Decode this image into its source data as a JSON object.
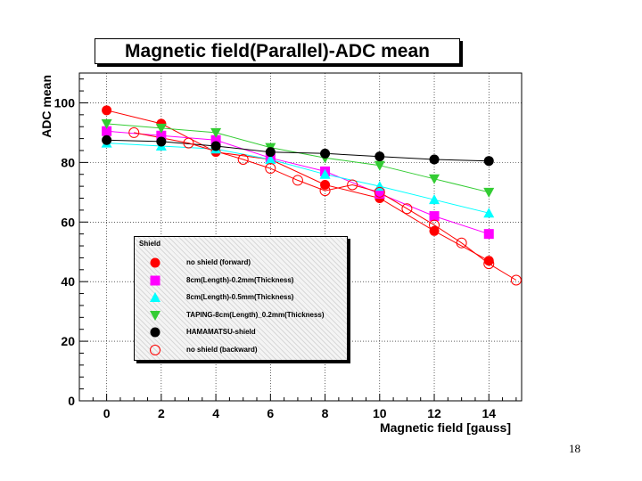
{
  "page_number": "18",
  "colors": {
    "no_shield_forward": "#ff0000",
    "thick_02": "#ff00ff",
    "thick_05": "#00ffff",
    "taping": "#33cc33",
    "hamamatsu": "#000000",
    "no_shield_backward": "#ff0000"
  },
  "chart_data": {
    "type": "scatter",
    "title": "Magnetic field(Parallel)-ADC mean",
    "xlabel": "Magnetic field [gauss]",
    "ylabel": "ADC mean",
    "xlim": [
      -1,
      15.2
    ],
    "ylim": [
      0,
      110
    ],
    "x_ticks": [
      0,
      2,
      4,
      6,
      8,
      10,
      12,
      14
    ],
    "x_tick_labels": [
      "0",
      "2",
      "4",
      "6",
      "8",
      "10",
      "12",
      "14"
    ],
    "y_ticks": [
      0,
      20,
      40,
      60,
      80,
      100
    ],
    "y_tick_labels": [
      "0",
      "20",
      "40",
      "60",
      "80",
      "100"
    ],
    "legend_title": "Shield",
    "legend_position": "lower-left",
    "series": [
      {
        "name": "no shield (forward)",
        "marker": "filled-circle",
        "color": "#ff0000",
        "x": [
          0,
          2,
          4,
          6,
          8,
          10,
          12,
          14
        ],
        "y": [
          97.5,
          93.0,
          83.5,
          81.0,
          72.5,
          68.0,
          57.0,
          47.0
        ]
      },
      {
        "name": "8cm(Length)-0.2mm(Thickness)",
        "marker": "square",
        "color": "#ff00ff",
        "x": [
          0,
          2,
          4,
          6,
          8,
          10,
          12,
          14
        ],
        "y": [
          90.5,
          89.0,
          87.5,
          81.5,
          77.0,
          69.5,
          62.0,
          56.0
        ]
      },
      {
        "name": "8cm(Length)-0.5mm(Thickness)",
        "marker": "triangle-up",
        "color": "#00ffff",
        "x": [
          0,
          2,
          4,
          6,
          8,
          10,
          12,
          14
        ],
        "y": [
          86.5,
          85.5,
          84.5,
          81.0,
          76.0,
          72.0,
          67.5,
          63.0
        ]
      },
      {
        "name": "TAPING-8cm(Length)_0.2mm(Thickness)",
        "marker": "triangle-down",
        "color": "#33cc33",
        "x": [
          0,
          2,
          4,
          6,
          8,
          10,
          12,
          14
        ],
        "y": [
          93.0,
          91.5,
          90.0,
          85.0,
          81.5,
          79.0,
          74.5,
          70.0
        ]
      },
      {
        "name": "HAMAMATSU-shield",
        "marker": "filled-circle",
        "color": "#000000",
        "x": [
          0,
          2,
          4,
          6,
          8,
          10,
          12,
          14
        ],
        "y": [
          87.5,
          87.0,
          85.5,
          83.5,
          83.0,
          82.0,
          81.0,
          80.5
        ]
      },
      {
        "name": "no shield (backward)",
        "marker": "open-circle",
        "color": "#ff0000",
        "x": [
          1,
          3,
          5,
          6,
          7,
          8,
          9,
          10,
          11,
          12,
          13,
          14,
          15
        ],
        "y": [
          90.0,
          86.5,
          81.0,
          78.0,
          74.0,
          70.5,
          72.5,
          70.0,
          64.5,
          59.0,
          53.0,
          46.0,
          40.5
        ]
      }
    ]
  }
}
